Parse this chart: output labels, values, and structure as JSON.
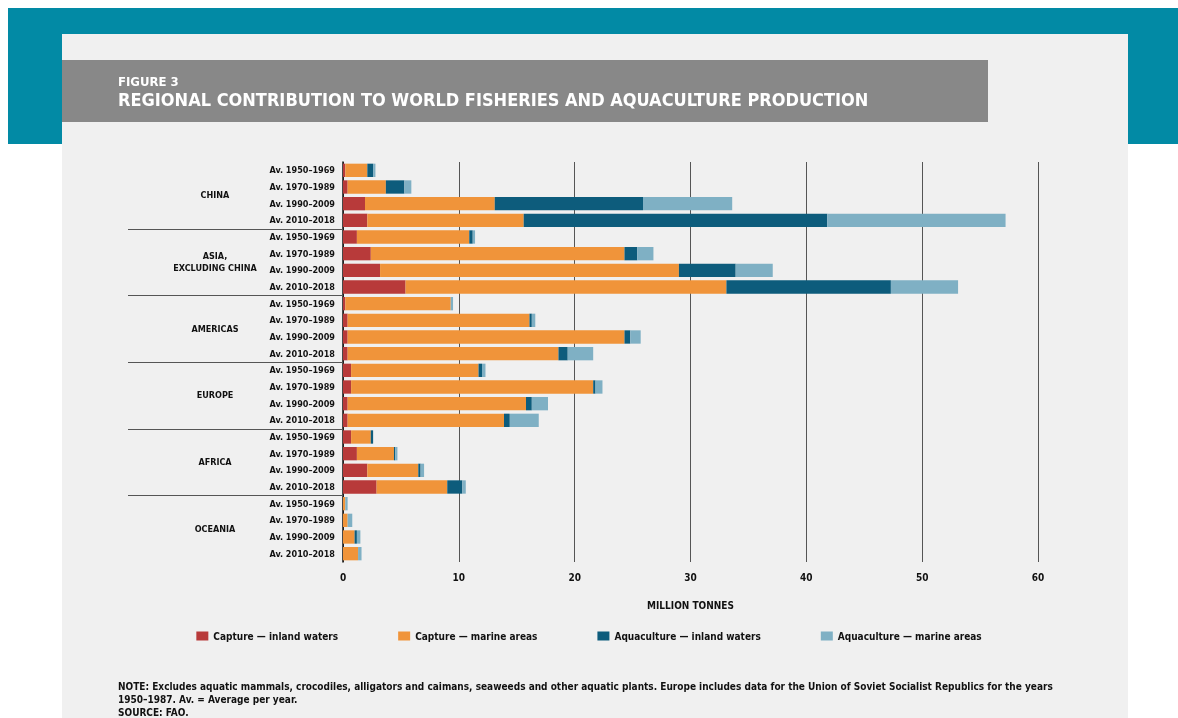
{
  "chart_data": {
    "type": "bar",
    "orientation": "horizontal",
    "stacked": true,
    "subtitle": "FIGURE 3",
    "title": "REGIONAL CONTRIBUTION TO WORLD FISHERIES AND AQUACULTURE PRODUCTION",
    "xlabel": "MILLION TONNES",
    "categories": [
      "Av. 1950–1969",
      "Av. 1970–1989",
      "Av. 1990–2009",
      "Av. 2010–2018",
      "Av. 1950–1969",
      "Av. 1970–1989",
      "Av. 1990–2009",
      "Av. 2010–2018",
      "Av. 1950–1969",
      "Av. 1970–1989",
      "Av. 1990–2009",
      "Av. 2010–2018",
      "Av. 1950–1969",
      "Av. 1970–1989",
      "Av. 1990–2009",
      "Av. 2010–2018",
      "Av. 1950–1969",
      "Av. 1970–1989",
      "Av. 1990–2009",
      "Av. 2010–2018",
      "Av. 1950–1969",
      "Av. 1970–1989",
      "Av. 1990–2009",
      "Av. 2010–2018"
    ],
    "series": [
      {
        "name": "Capture — inland waters",
        "color": "#b83a3a",
        "values": [
          0.2,
          0.4,
          1.9,
          2.1,
          1.2,
          2.4,
          3.2,
          5.4,
          0.2,
          0.4,
          0.4,
          0.4,
          0.7,
          0.7,
          0.4,
          0.4,
          0.7,
          1.2,
          2.1,
          2.9,
          0,
          0,
          0,
          0
        ]
      },
      {
        "name": "Capture — marine areas",
        "color": "#f0943a",
        "values": [
          1.9,
          3.3,
          11.2,
          13.5,
          9.7,
          21.9,
          25.8,
          27.7,
          9.1,
          15.7,
          23.9,
          18.2,
          11.0,
          20.9,
          15.4,
          13.5,
          1.7,
          3.2,
          4.4,
          6.1,
          0.2,
          0.4,
          1.0,
          1.3
        ]
      },
      {
        "name": "Aquaculture — inland waters",
        "color": "#0d5c7c",
        "values": [
          0.5,
          1.6,
          12.8,
          26.2,
          0.3,
          1.1,
          4.9,
          14.2,
          0,
          0.2,
          0.5,
          0.8,
          0.3,
          0.2,
          0.5,
          0.5,
          0.2,
          0.1,
          0.2,
          1.3,
          0,
          0,
          0.2,
          0
        ]
      },
      {
        "name": "Aquaculture — marine areas",
        "color": "#7fb0c4",
        "values": [
          0.2,
          0.6,
          7.7,
          15.4,
          0.2,
          1.4,
          3.2,
          5.8,
          0.2,
          0.3,
          0.9,
          2.2,
          0.3,
          0.6,
          1.4,
          2.5,
          0,
          0.2,
          0.3,
          0.3,
          0.2,
          0.4,
          0.3,
          0.3
        ]
      }
    ],
    "xlim": [
      0,
      60
    ],
    "xticks": [
      0,
      10,
      20,
      30,
      40,
      50,
      60
    ],
    "grid": "x",
    "legend": "bottom",
    "annotations": [
      "CHINA",
      "ASIA,\nEXCLUDING CHINA",
      "AMERICAS",
      "EUROPE",
      "AFRICA",
      "OCEANIA",
      "NOTE: Excludes aquatic mammals, crocodiles, alligators and caimans, seaweeds and other aquatic plants. Europe includes data for the Union of Soviet Socialist Republics for the years 1950–1987. Av. = Average per year.",
      "SOURCE: FAO."
    ]
  }
}
